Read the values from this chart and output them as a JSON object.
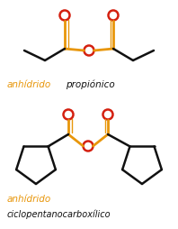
{
  "orange": "#E8960A",
  "red": "#D42010",
  "black": "#111111",
  "bg": "#ffffff",
  "text1_orange": "anhídrido",
  "text1_black": "propiónico",
  "text2_orange": "anhídrido",
  "text2_black": "ciclopentanocarboxílico",
  "fig_w": 1.98,
  "fig_h": 2.55,
  "dpi": 100
}
